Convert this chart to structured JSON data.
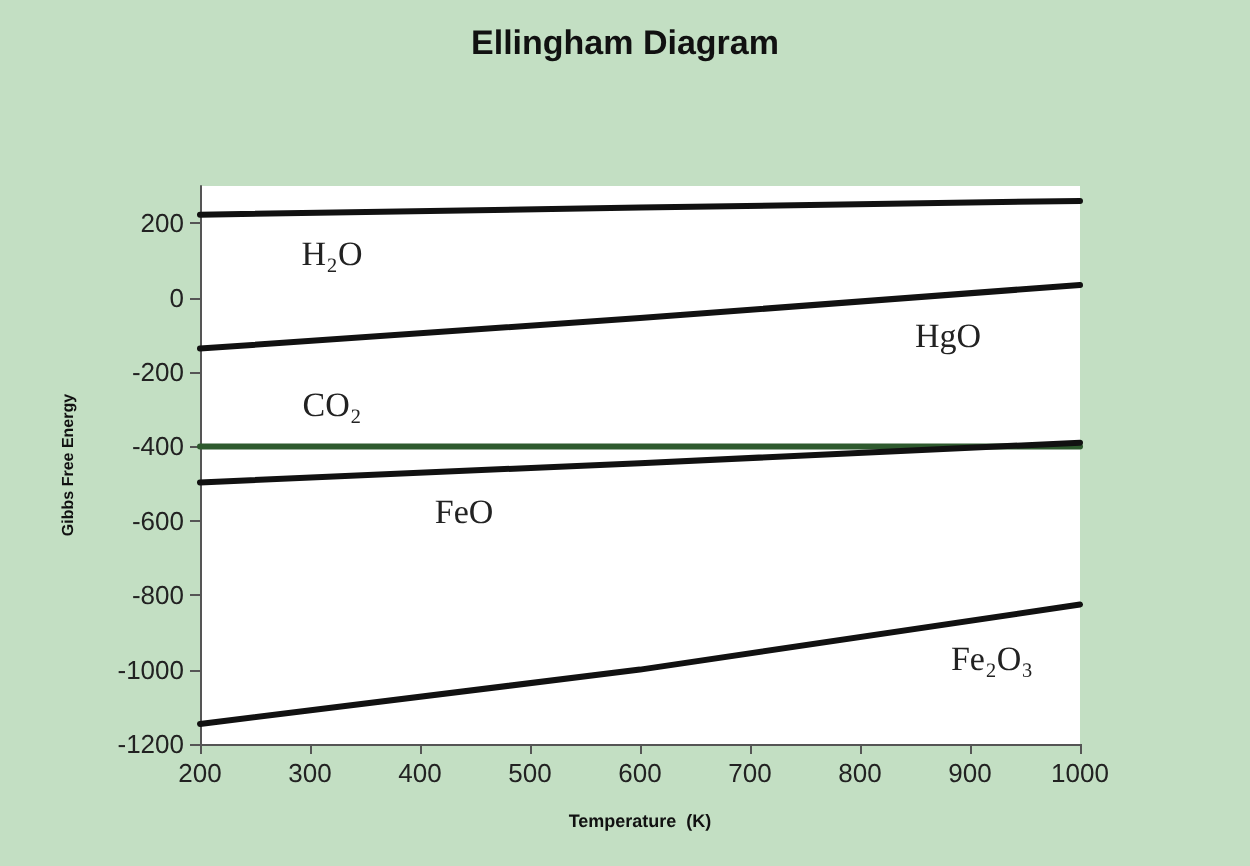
{
  "chart_data": {
    "type": "line",
    "title": "Ellingham Diagram",
    "xlabel": "Temperature  (K)",
    "ylabel": "Gibbs Free Energy",
    "xlim": [
      200,
      1000
    ],
    "xticks": [
      200,
      300,
      400,
      500,
      600,
      700,
      800,
      900,
      1000
    ],
    "ylim": [
      -1200,
      300
    ],
    "yticks": [
      -1200,
      -1000,
      -800,
      -600,
      -400,
      -200,
      0,
      200
    ],
    "grid": false,
    "legend": false,
    "marker": "none",
    "series": [
      {
        "name": "H₂O",
        "color": "#111111",
        "x": [
          200,
          600,
          1000
        ],
        "values": [
          223,
          242,
          260
        ]
      },
      {
        "name": "HgO",
        "color": "#111111",
        "x": [
          200,
          600,
          1000
        ],
        "values": [
          -137,
          -55,
          34
        ]
      },
      {
        "name": "CO₂",
        "color": "#2e5a2e",
        "x": [
          200,
          600,
          1000
        ],
        "values": [
          -400,
          -400,
          -400
        ]
      },
      {
        "name": "FeO",
        "color": "#111111",
        "x": [
          200,
          600,
          1000
        ],
        "values": [
          -497,
          -445,
          -390
        ]
      },
      {
        "name": "Fe₂O₃",
        "color": "#111111",
        "x": [
          200,
          600,
          1000
        ],
        "values": [
          -1146,
          -1000,
          -825
        ]
      }
    ]
  }
}
